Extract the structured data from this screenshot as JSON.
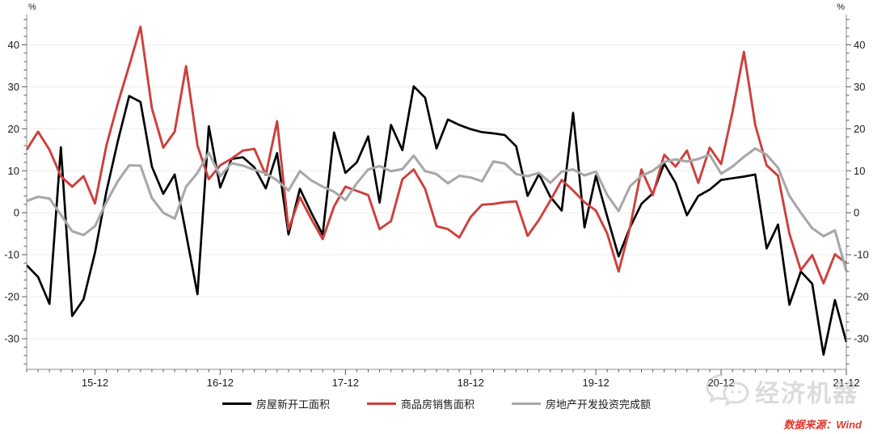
{
  "chart_data": {
    "type": "line",
    "title": "",
    "unit_left": "%",
    "unit_right": "%",
    "grid": true,
    "legend_position": "bottom",
    "ylim": [
      -37.3,
      47.2
    ],
    "yticks": [
      -30,
      -20,
      -10,
      0,
      10,
      20,
      30,
      40
    ],
    "x_tick_labels": [
      "15-12",
      "16-12",
      "17-12",
      "18-12",
      "19-12",
      "20-12",
      "21-12"
    ],
    "x_tick_indices": [
      6,
      17,
      28,
      39,
      50,
      61,
      72
    ],
    "categories": [
      "15-06",
      "15-07",
      "15-08",
      "15-09",
      "15-10",
      "15-11",
      "15-12",
      "16-02",
      "16-03",
      "16-04",
      "16-05",
      "16-06",
      "16-07",
      "16-08",
      "16-09",
      "16-10",
      "16-11",
      "16-12",
      "17-02",
      "17-03",
      "17-04",
      "17-05",
      "17-06",
      "17-07",
      "17-08",
      "17-09",
      "17-10",
      "17-11",
      "17-12",
      "18-02",
      "18-03",
      "18-04",
      "18-05",
      "18-06",
      "18-07",
      "18-08",
      "18-09",
      "18-10",
      "18-11",
      "18-12",
      "19-02",
      "19-03",
      "19-04",
      "19-05",
      "19-06",
      "19-07",
      "19-08",
      "19-09",
      "19-10",
      "19-11",
      "19-12",
      "20-02",
      "20-03",
      "20-04",
      "20-05",
      "20-06",
      "20-07",
      "20-08",
      "20-09",
      "20-10",
      "20-11",
      "20-12",
      "21-02",
      "21-03",
      "21-04",
      "21-05",
      "21-06",
      "21-07",
      "21-08",
      "21-09",
      "21-10",
      "21-11",
      "21-12"
    ],
    "series": [
      {
        "name": "房屋新开工面积",
        "color": "#000000",
        "values": [
          -12.5,
          -15.3,
          -21.7,
          15.6,
          -24.6,
          -20.6,
          -9.5,
          5,
          17,
          27.8,
          26.4,
          11,
          4.5,
          9.1,
          -5,
          -19.4,
          20.6,
          6,
          12.8,
          13.2,
          10.8,
          5.8,
          14.2,
          -5.2,
          5.7,
          0,
          -5.2,
          19.1,
          9.5,
          12,
          18.2,
          2.4,
          20.9,
          14.9,
          30.1,
          27.4,
          15.3,
          22.2,
          20.9,
          19.9,
          19.2,
          18.9,
          18.5,
          15.8,
          4,
          9.2,
          3.8,
          0.5,
          23.8,
          -3.5,
          8.8,
          -1,
          -10.4,
          -3.5,
          2.1,
          4.6,
          11.7,
          7.1,
          -0.6,
          4,
          5.5,
          7.8,
          8.2,
          8.6,
          9.1,
          -8.5,
          -2.8,
          -21.9,
          -14,
          -16.9,
          -33.8,
          -20.8,
          -30.8
        ]
      },
      {
        "name": "商品房销售面积",
        "color": "#cd3f3c",
        "values": [
          15,
          19.3,
          15,
          8.7,
          6.2,
          8.7,
          2.2,
          16,
          26,
          35,
          44.3,
          24.9,
          15.5,
          19.3,
          34.9,
          16,
          8,
          11.3,
          12.9,
          14.8,
          15.2,
          9,
          21.8,
          -4,
          3.7,
          -1.5,
          -6.3,
          1.5,
          6.2,
          5.2,
          4.2,
          -3.9,
          -2,
          8,
          10.3,
          5.7,
          -3.2,
          -3.9,
          -5.9,
          -1,
          1.9,
          2.1,
          2.5,
          2.7,
          -5.5,
          -1.7,
          2.9,
          7.8,
          5.3,
          2.5,
          0.5,
          -5,
          -14,
          -3.5,
          10.3,
          4.2,
          13.8,
          11,
          14.8,
          7.1,
          15.5,
          11.6,
          24,
          38.3,
          20.9,
          11.3,
          8.8,
          -5,
          -13.7,
          -10.1,
          -16.8,
          -9.9,
          -12
        ]
      },
      {
        "name": "房地产开发投资完成额",
        "color": "#a8a8a8",
        "values": [
          2.8,
          3.8,
          3.4,
          -0.5,
          -4.4,
          -5.3,
          -3.2,
          2.5,
          7.5,
          11.3,
          11.2,
          3.5,
          0,
          -1.4,
          6.2,
          9.5,
          14.3,
          8.7,
          11.8,
          11.2,
          10.2,
          9.4,
          7.7,
          5.3,
          9.9,
          7.7,
          6.2,
          5,
          3,
          7,
          10.3,
          11.1,
          9.9,
          10.4,
          13.6,
          9.9,
          9.2,
          7,
          8.8,
          8.4,
          7.5,
          12.2,
          11.7,
          9.2,
          8.7,
          9.5,
          7.1,
          9.8,
          10.3,
          8.9,
          9.8,
          4.2,
          0.4,
          6.3,
          8.8,
          10,
          12.1,
          12.7,
          12.2,
          12.8,
          13.8,
          9.3,
          11,
          13.3,
          15.3,
          13.8,
          10.7,
          4,
          0,
          -3.7,
          -5.6,
          -4.2,
          -13.9
        ]
      }
    ]
  },
  "watermark": {
    "text": "经济机器"
  },
  "footer": {
    "source_label": "数据来源：Wind"
  },
  "style": {
    "grid_color": "#ececec",
    "axis_color": "#8c8c8c",
    "tick_color": "#555555",
    "line_widths": [
      2.7,
      2.9,
      3.1
    ]
  }
}
